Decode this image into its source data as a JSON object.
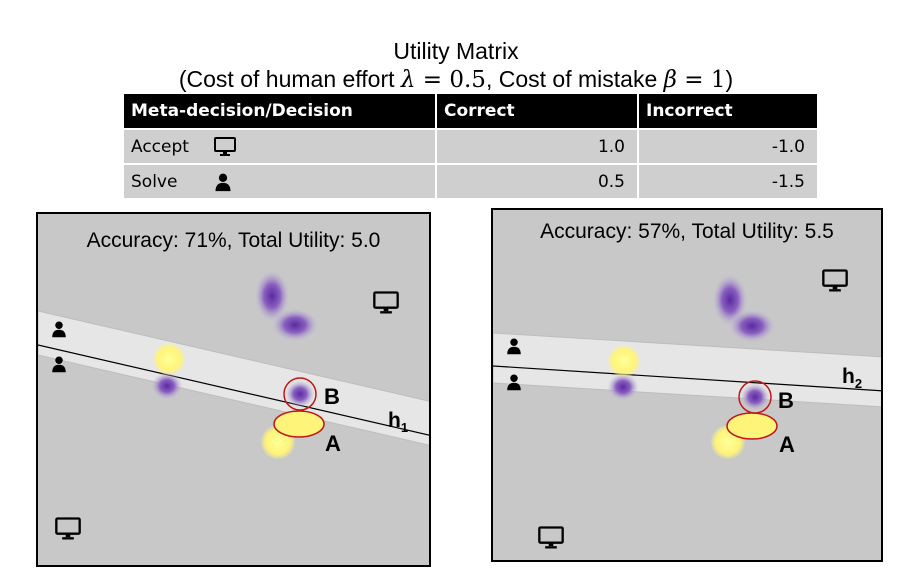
{
  "title": {
    "line1": "Utility Matrix",
    "line2_prefix": "(Cost of human effort ",
    "lambda_sym": "λ",
    "lambda_eq": " = 0.5",
    "line2_mid": ", Cost of mistake ",
    "beta_sym": "β",
    "beta_eq": " = 1",
    "line2_suffix": ")"
  },
  "table": {
    "headers": [
      "Meta-decision/Decision",
      "Correct",
      "Incorrect"
    ],
    "rows": [
      {
        "label": "Accept",
        "icon": "computer-icon",
        "correct": "1.0",
        "incorrect": "-1.0"
      },
      {
        "label": "Solve",
        "icon": "person-icon",
        "correct": "0.5",
        "incorrect": "-1.5"
      }
    ]
  },
  "panels": [
    {
      "title": "Accuracy: 71%, Total Utility: 5.0",
      "hyperplane": "h",
      "hyperplane_sub": "1",
      "point_a": "A",
      "point_b": "B"
    },
    {
      "title": "Accuracy: 57%, Total Utility: 5.5",
      "hyperplane": "h",
      "hyperplane_sub": "2",
      "point_a": "A",
      "point_b": "B"
    }
  ],
  "colors": {
    "table_header_bg": "#000000",
    "table_row_bg": "#cfcfcf",
    "panel_bg": "#c8c8c8",
    "band": "#e6e6e6",
    "purple": "#6a38b0",
    "yellow": "#ffef6a",
    "highlight_ring": "#c01818"
  }
}
